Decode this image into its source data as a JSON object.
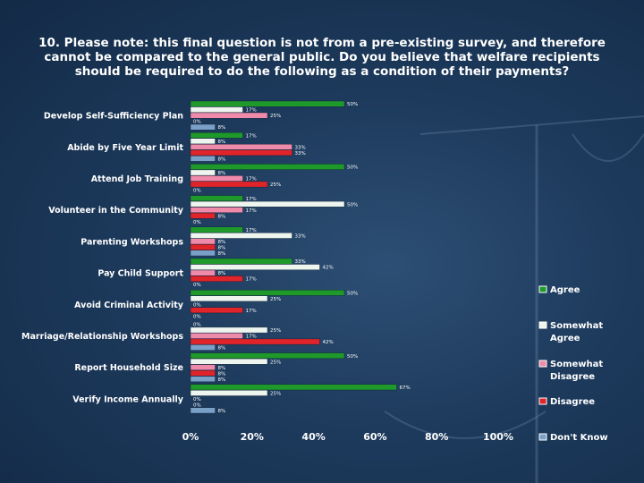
{
  "title_lines": [
    "10. Please note: this final question is not from a pre-existing survey, and therefore",
    "cannot be compared to the general public. Do you believe that welfare recipients",
    "should be required to do the following as a condition of their payments?"
  ],
  "chart_data": {
    "type": "bar",
    "orientation": "horizontal",
    "categories": [
      "Develop Self-Sufficiency Plan",
      "Abide by Five Year Limit",
      "Attend Job Training",
      "Volunteer in the Community",
      "Parenting Workshops",
      "Pay Child Support",
      "Avoid Criminal Activity",
      "Marriage/Relationship Workshops",
      "Report Household Size",
      "Verify Income Annually"
    ],
    "series": [
      {
        "name": "Agree",
        "color": "#1f9a2a",
        "values": [
          50,
          17,
          50,
          17,
          17,
          33,
          50,
          0,
          50,
          67
        ]
      },
      {
        "name": "Somewhat Agree",
        "color": "#eef4ee",
        "values": [
          17,
          8,
          8,
          50,
          33,
          42,
          25,
          25,
          25,
          25
        ]
      },
      {
        "name": "Somewhat Disagree",
        "color": "#f08aaa",
        "values": [
          25,
          33,
          17,
          17,
          8,
          8,
          0,
          17,
          8,
          0
        ]
      },
      {
        "name": "Disagree",
        "color": "#e0242a",
        "values": [
          0,
          33,
          25,
          8,
          8,
          17,
          17,
          42,
          8,
          0
        ]
      },
      {
        "name": "Don't Know",
        "color": "#7aa0c8",
        "values": [
          8,
          8,
          0,
          0,
          8,
          0,
          0,
          8,
          8,
          8
        ]
      }
    ],
    "value_labels": [
      [
        "50%",
        "17%",
        "25%",
        "0%",
        "8%"
      ],
      [
        "17%",
        "8%",
        "33%",
        "33%",
        "8%"
      ],
      [
        "50%",
        "8%",
        "17%",
        "25%",
        "0%"
      ],
      [
        "17%",
        "50%",
        "17%",
        "8%",
        "0%"
      ],
      [
        "17%",
        "33%",
        "8%",
        "8%",
        "8%"
      ],
      [
        "33%",
        "42%",
        "8%",
        "17%",
        "0%"
      ],
      [
        "50%",
        "25%",
        "0%",
        "17%",
        "0%"
      ],
      [
        "0%",
        "25%",
        "17%",
        "42%",
        "8%"
      ],
      [
        "50%",
        "25%",
        "8%",
        "8%",
        "8%"
      ],
      [
        "67%",
        "25%",
        "0%",
        "0%",
        "8%"
      ]
    ],
    "legend_lines": [
      [
        "Agree"
      ],
      [
        "Somewhat",
        "Agree"
      ],
      [
        "Somewhat",
        "Disagree"
      ],
      [
        "Disagree"
      ],
      [
        "Don't Know"
      ]
    ],
    "xlim": [
      0,
      100
    ],
    "xticks": [
      0,
      20,
      40,
      60,
      80,
      100
    ],
    "xtick_labels": [
      "0%",
      "20%",
      "40%",
      "60%",
      "80%",
      "100%"
    ],
    "legend_position": "right",
    "grid": false,
    "title": "",
    "xlabel": "",
    "ylabel": ""
  }
}
